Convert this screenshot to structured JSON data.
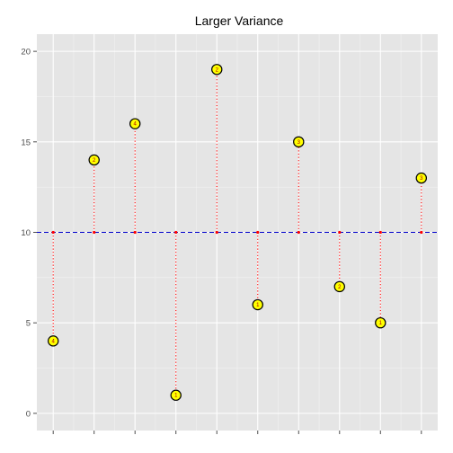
{
  "chart_data": {
    "type": "scatter",
    "title": "Larger Variance",
    "xlabel": "",
    "ylabel": "",
    "xlim": [
      0.6,
      10.4
    ],
    "ylim": [
      -0.95,
      20.95
    ],
    "x_breaks": [
      1,
      2,
      3,
      4,
      5,
      6,
      7,
      8,
      9,
      10
    ],
    "x_tick_labels": [
      "",
      "",
      "",
      "",
      "",
      "",
      "",
      "",
      "",
      ""
    ],
    "y_breaks": [
      0,
      5,
      10,
      15,
      20
    ],
    "y_tick_labels": [
      "0",
      "5",
      "10",
      "15",
      "20"
    ],
    "grid": true,
    "mean": 10,
    "points": [
      {
        "x": 1,
        "y": 4,
        "label": "4"
      },
      {
        "x": 2,
        "y": 14,
        "label": "2"
      },
      {
        "x": 3,
        "y": 16,
        "label": "4"
      },
      {
        "x": 4,
        "y": 1,
        "label": "1"
      },
      {
        "x": 5,
        "y": 19,
        "label": "2"
      },
      {
        "x": 6,
        "y": 6,
        "label": "1"
      },
      {
        "x": 7,
        "y": 15,
        "label": "3"
      },
      {
        "x": 8,
        "y": 7,
        "label": "2"
      },
      {
        "x": 9,
        "y": 5,
        "label": "1"
      },
      {
        "x": 10,
        "y": 13,
        "label": "3"
      }
    ]
  },
  "colors": {
    "panel": "#e5e5e5",
    "grid_major": "#ffffff",
    "grid_minor": "#f2f2f2",
    "point_fill": "#ffff00",
    "point_stroke": "#000000",
    "segment": "#ff0000",
    "mean_line": "#0000cc",
    "mean_marker": "#ff0000"
  }
}
